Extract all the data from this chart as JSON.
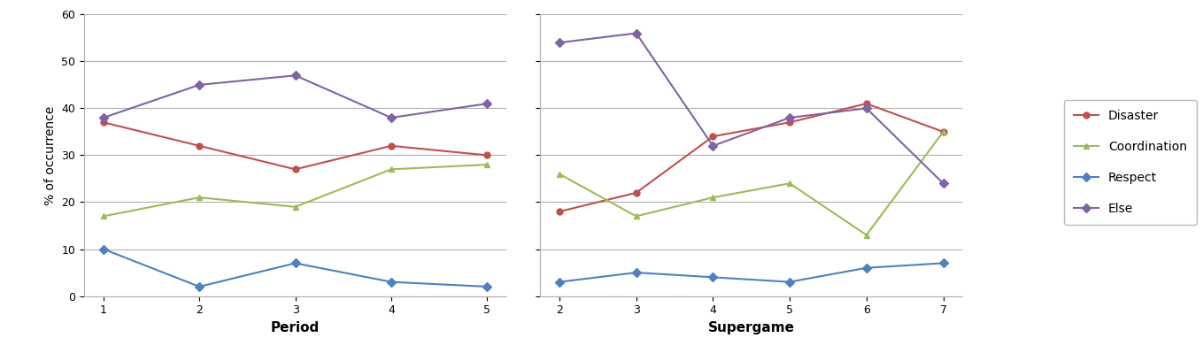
{
  "period_x": [
    1,
    2,
    3,
    4,
    5
  ],
  "period_disaster": [
    37,
    32,
    27,
    32,
    30
  ],
  "period_coordination": [
    17,
    21,
    19,
    27,
    28
  ],
  "period_respect": [
    10,
    2,
    7,
    3,
    2
  ],
  "period_else": [
    38,
    45,
    47,
    38,
    41
  ],
  "supergame_x": [
    2,
    3,
    4,
    5,
    6,
    7
  ],
  "supergame_disaster": [
    18,
    22,
    34,
    37,
    41,
    35
  ],
  "supergame_coordination": [
    26,
    17,
    21,
    24,
    13,
    35
  ],
  "supergame_respect": [
    3,
    5,
    4,
    3,
    6,
    7
  ],
  "supergame_else": [
    54,
    56,
    32,
    38,
    40,
    24
  ],
  "disaster_color": "#c0504d",
  "coordination_color": "#9bbb59",
  "respect_color": "#4f81bd",
  "else_color": "#8064a2",
  "ylabel": "% of occurrence",
  "xlabel_left": "Period",
  "xlabel_right": "Supergame",
  "ylim": [
    0,
    60
  ],
  "yticks": [
    0,
    10,
    20,
    30,
    40,
    50,
    60
  ],
  "legend_labels": [
    "Disaster",
    "Coordination",
    "Respect",
    "Else"
  ],
  "background_color": "#ffffff",
  "grid_color": "#b0b0b0"
}
